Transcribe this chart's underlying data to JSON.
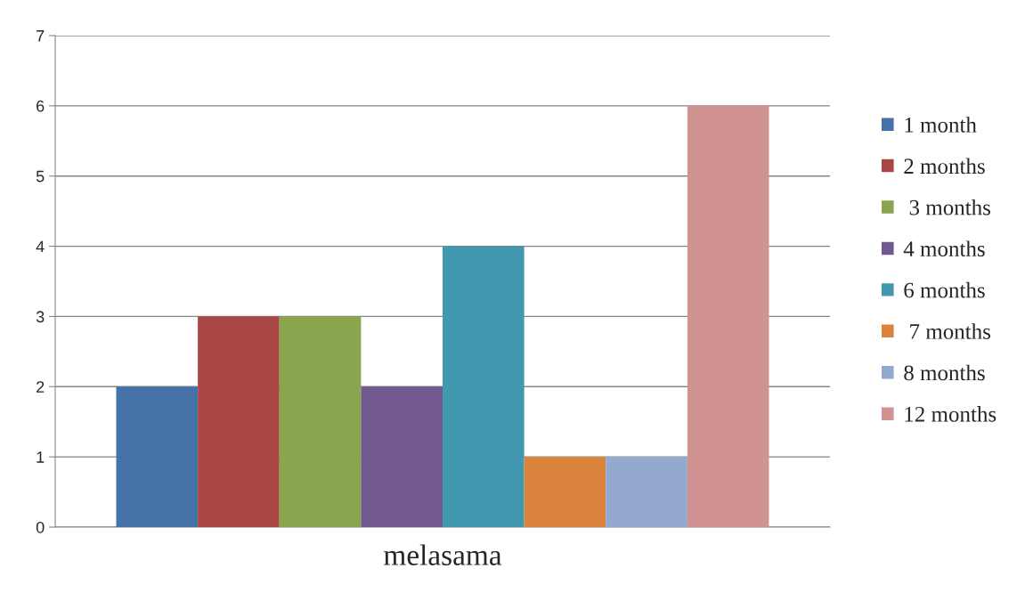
{
  "chart_data": {
    "type": "bar",
    "categories": [
      "melasama"
    ],
    "series": [
      {
        "name": "1 month",
        "color": "#4572a7",
        "values": [
          2
        ]
      },
      {
        "name": "2 months",
        "color": "#aa4643",
        "values": [
          3
        ]
      },
      {
        "name": " 3 months",
        "color": "#89a54e",
        "values": [
          3
        ]
      },
      {
        "name": "4 months",
        "color": "#71588f",
        "values": [
          2
        ]
      },
      {
        "name": "6 months",
        "color": "#4198af",
        "values": [
          4
        ]
      },
      {
        "name": " 7 months",
        "color": "#db843d",
        "values": [
          1
        ]
      },
      {
        "name": "8 months",
        "color": "#93a9cf",
        "values": [
          1
        ]
      },
      {
        "name": "12 months",
        "color": "#d19392",
        "values": [
          6
        ]
      }
    ],
    "ylim": [
      0,
      7
    ],
    "yticks": [
      0,
      1,
      2,
      3,
      4,
      5,
      6,
      7
    ],
    "grid": "y",
    "legend": "right"
  }
}
